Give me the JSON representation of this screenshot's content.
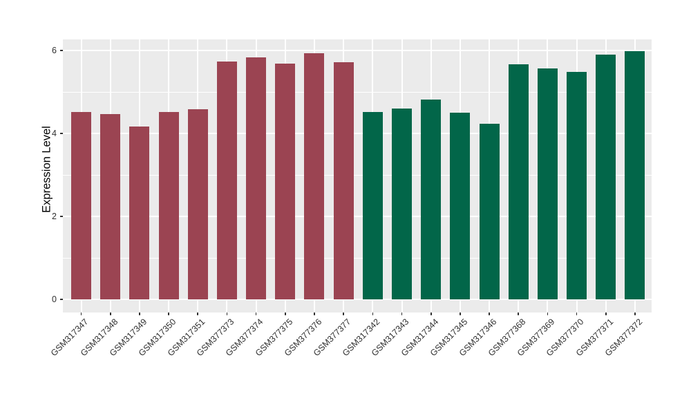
{
  "chart_data": {
    "type": "bar",
    "title": "",
    "xlabel": "",
    "ylabel": "Expression Level",
    "ylim": [
      0,
      6.27
    ],
    "yticks": [
      0,
      2,
      4,
      6
    ],
    "ytick_labels": [
      "0",
      "2",
      "4",
      "6"
    ],
    "yminor": [
      1,
      3,
      5
    ],
    "grid": "on",
    "legend": "none",
    "categories": [
      "GSM317347",
      "GSM317348",
      "GSM317349",
      "GSM317350",
      "GSM317351",
      "GSM377373",
      "GSM377374",
      "GSM377375",
      "GSM377376",
      "GSM377377",
      "GSM317342",
      "GSM317343",
      "GSM317344",
      "GSM317345",
      "GSM317346",
      "GSM377368",
      "GSM377369",
      "GSM377370",
      "GSM377371",
      "GSM377372"
    ],
    "values": [
      4.52,
      4.47,
      4.16,
      4.52,
      4.58,
      5.73,
      5.84,
      5.69,
      5.94,
      5.71,
      4.51,
      4.6,
      4.81,
      4.5,
      4.23,
      5.67,
      5.56,
      5.48,
      5.9,
      5.98
    ],
    "bar_groups": [
      "maroon",
      "maroon",
      "maroon",
      "maroon",
      "maroon",
      "maroon",
      "maroon",
      "maroon",
      "maroon",
      "maroon",
      "green",
      "green",
      "green",
      "green",
      "green",
      "green",
      "green",
      "green",
      "green",
      "green"
    ],
    "group_colors": {
      "maroon": "#9B4452",
      "green": "#026649"
    },
    "panel_background": "#EBEBEB",
    "grid_color": "#FFFFFF",
    "tick_color": "#333333"
  }
}
